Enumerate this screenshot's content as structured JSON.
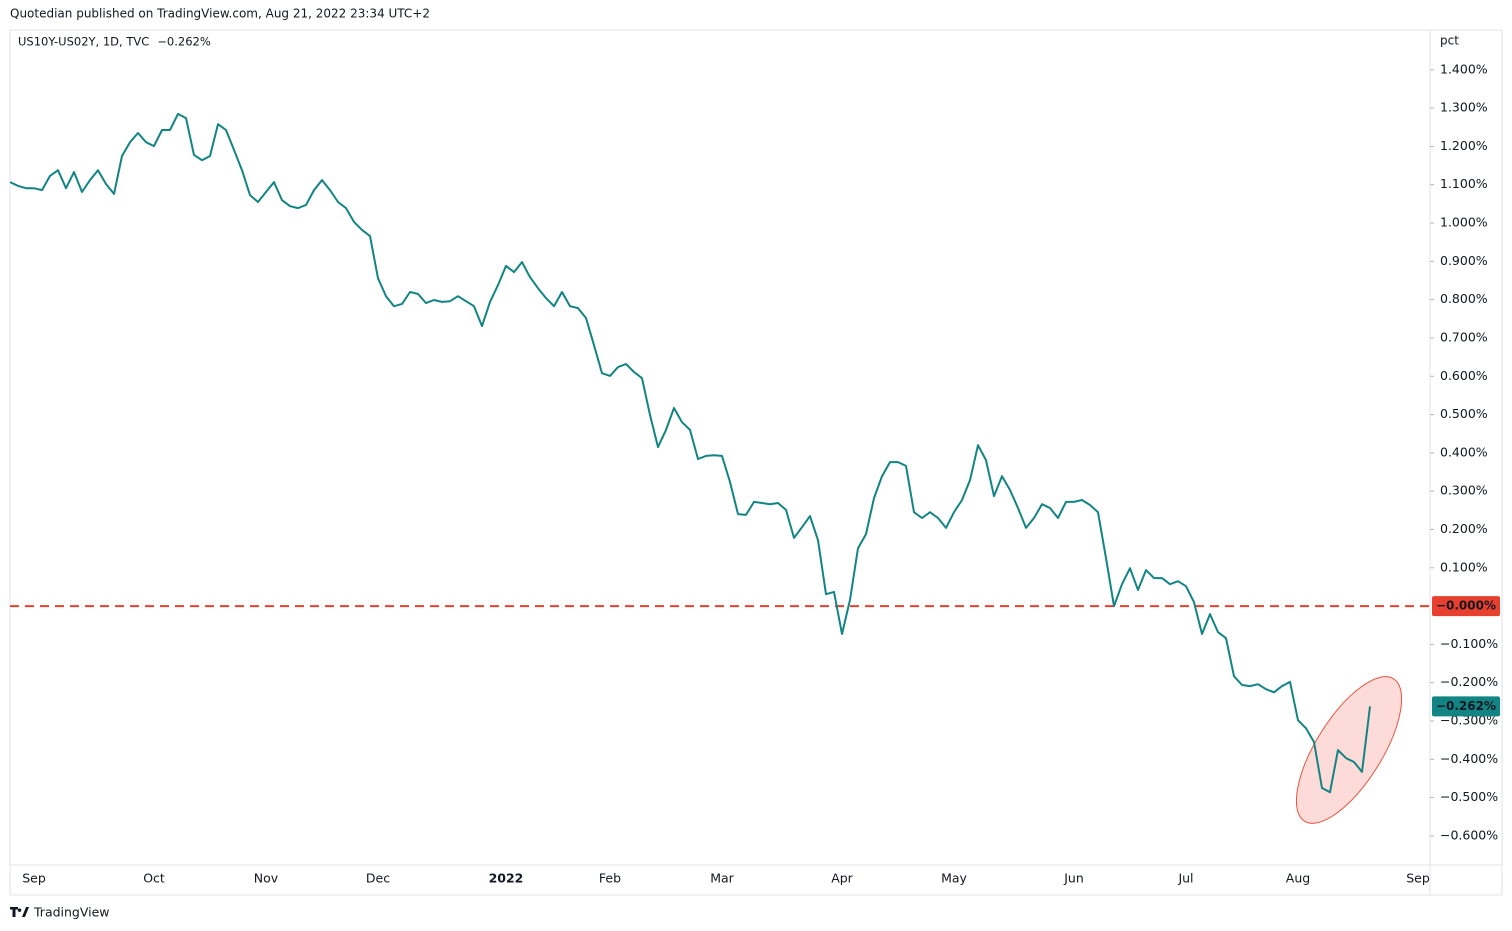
{
  "header": "Quotedian published on TradingView.com, Aug 21, 2022 23:34 UTC+2",
  "footer": "TradingView",
  "chart_data": {
    "type": "line",
    "y_axis_label": "pct",
    "categories": [
      null,
      null,
      null,
      "Sep",
      null,
      null,
      null,
      null,
      null,
      null,
      null,
      null,
      null,
      null,
      null,
      null,
      null,
      null,
      "Oct",
      null,
      null,
      null,
      null,
      null,
      null,
      null,
      null,
      null,
      null,
      null,
      null,
      null,
      "Nov",
      null,
      null,
      null,
      null,
      null,
      null,
      null,
      null,
      null,
      null,
      null,
      null,
      null,
      "Dec",
      null,
      null,
      null,
      null,
      null,
      null,
      null,
      null,
      null,
      null,
      null,
      null,
      null,
      null,
      null,
      "2022",
      null,
      null,
      null,
      null,
      null,
      null,
      null,
      null,
      null,
      null,
      null,
      null,
      "Feb",
      null,
      null,
      null,
      null,
      null,
      null,
      null,
      null,
      null,
      null,
      null,
      null,
      null,
      "Mar",
      null,
      null,
      null,
      null,
      null,
      null,
      null,
      null,
      null,
      null,
      null,
      null,
      null,
      null,
      "Apr",
      null,
      null,
      null,
      null,
      null,
      null,
      null,
      null,
      null,
      null,
      null,
      null,
      null,
      "May",
      null,
      null,
      null,
      null,
      null,
      null,
      null,
      null,
      null,
      null,
      null,
      null,
      null,
      null,
      "Jun",
      null,
      null,
      null,
      null,
      null,
      null,
      null,
      null,
      null,
      null,
      null,
      null,
      null,
      "Jul",
      null,
      null,
      null,
      null,
      null,
      null,
      null,
      null,
      null,
      null,
      null,
      null,
      null,
      "Aug",
      null,
      null,
      null,
      null,
      null,
      null,
      null,
      null,
      null,
      null,
      null,
      null,
      null,
      null,
      "Sep",
      null
    ],
    "series": [
      {
        "name": "US10Y-US02Y, 1D, TVC",
        "color": "#138484",
        "last_label": "−0.262%",
        "values": [
          1.107,
          1.097,
          1.091,
          1.091,
          1.086,
          1.123,
          1.138,
          1.091,
          1.133,
          1.081,
          1.112,
          1.138,
          1.102,
          1.076,
          1.175,
          1.211,
          1.235,
          1.211,
          1.201,
          1.243,
          1.243,
          1.285,
          1.274,
          1.178,
          1.164,
          1.175,
          1.258,
          1.243,
          1.191,
          1.138,
          1.073,
          1.055,
          1.081,
          1.107,
          1.06,
          1.044,
          1.039,
          1.047,
          1.086,
          1.112,
          1.086,
          1.055,
          1.039,
          1.003,
          0.982,
          0.966,
          0.856,
          0.809,
          0.783,
          0.789,
          0.82,
          0.815,
          0.791,
          0.799,
          0.794,
          0.796,
          0.809,
          0.796,
          0.783,
          0.731,
          0.794,
          0.838,
          0.888,
          0.872,
          0.898,
          0.859,
          0.83,
          0.804,
          0.783,
          0.82,
          0.783,
          0.778,
          0.752,
          0.681,
          0.608,
          0.601,
          0.624,
          0.632,
          0.611,
          0.595,
          0.499,
          0.415,
          0.46,
          0.517,
          0.48,
          0.46,
          0.384,
          0.392,
          0.394,
          0.392,
          0.324,
          0.24,
          0.238,
          0.272,
          0.269,
          0.266,
          0.269,
          0.251,
          0.178,
          0.206,
          0.235,
          0.172,
          0.031,
          0.037,
          -0.073,
          0.016,
          0.151,
          0.188,
          0.282,
          0.339,
          0.376,
          0.376,
          0.366,
          0.245,
          0.23,
          0.245,
          0.23,
          0.204,
          0.245,
          0.277,
          0.329,
          0.42,
          0.381,
          0.287,
          0.339,
          0.303,
          0.256,
          0.204,
          0.23,
          0.266,
          0.256,
          0.23,
          0.272,
          0.272,
          0.277,
          0.264,
          0.245,
          0.125,
          0,
          0.057,
          0.099,
          0.042,
          0.094,
          0.073,
          0.073,
          0.057,
          0.065,
          0.052,
          0.01,
          -0.073,
          -0.021,
          -0.068,
          -0.084,
          -0.183,
          -0.206,
          -0.209,
          -0.204,
          -0.217,
          -0.225,
          -0.209,
          -0.198,
          -0.298,
          -0.319,
          -0.355,
          -0.475,
          -0.486,
          -0.376,
          -0.397,
          -0.407,
          -0.433,
          -0.262,
          null,
          null,
          null,
          null,
          null,
          null,
          null
        ]
      }
    ],
    "reference_line": {
      "value": 0,
      "label": "−0.000%",
      "color": "#e8402f"
    },
    "ylim": [
      -0.676,
      1.504
    ],
    "yticks": [
      {
        "value": 1.4,
        "label": "1.400%"
      },
      {
        "value": 1.3,
        "label": "1.300%"
      },
      {
        "value": 1.2,
        "label": "1.200%"
      },
      {
        "value": 1.1,
        "label": "1.100%"
      },
      {
        "value": 1.0,
        "label": "1.000%"
      },
      {
        "value": 0.9,
        "label": "0.900%"
      },
      {
        "value": 0.8,
        "label": "0.800%"
      },
      {
        "value": 0.7,
        "label": "0.700%"
      },
      {
        "value": 0.6,
        "label": "0.600%"
      },
      {
        "value": 0.5,
        "label": "0.500%"
      },
      {
        "value": 0.4,
        "label": "0.400%"
      },
      {
        "value": 0.3,
        "label": "0.300%"
      },
      {
        "value": 0.2,
        "label": "0.200%"
      },
      {
        "value": 0.1,
        "label": "0.100%"
      },
      {
        "value": -0.1,
        "label": "−0.100%"
      },
      {
        "value": -0.2,
        "label": "−0.200%"
      },
      {
        "value": -0.3,
        "label": "−0.300%"
      },
      {
        "value": -0.4,
        "label": "−0.400%"
      },
      {
        "value": -0.5,
        "label": "−0.500%"
      },
      {
        "value": -0.6,
        "label": "−0.600%"
      }
    ],
    "grid": false
  }
}
